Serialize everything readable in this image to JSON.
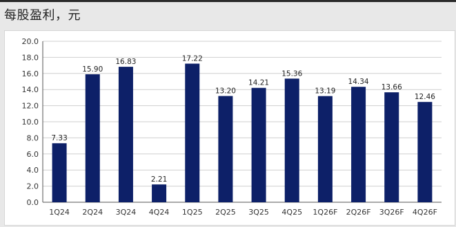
{
  "title": "每股盈利，元",
  "colors": {
    "bar": "#0d2068",
    "grid": "#cfcfcf",
    "axis": "#555555"
  },
  "chart_data": {
    "type": "bar",
    "title": "每股盈利，元",
    "xlabel": "",
    "ylabel": "",
    "categories": [
      "1Q24",
      "2Q24",
      "3Q24",
      "4Q24",
      "1Q25",
      "2Q25",
      "3Q25",
      "4Q25",
      "1Q26F",
      "2Q26F",
      "3Q26F",
      "4Q26F"
    ],
    "values": [
      7.33,
      15.9,
      16.83,
      2.21,
      17.22,
      13.2,
      14.21,
      15.36,
      13.19,
      14.34,
      13.66,
      12.46
    ],
    "data_labels": [
      "7.33",
      "15.90",
      "16.83",
      "2.21",
      "17.22",
      "13.20",
      "14.21",
      "15.36",
      "13.19",
      "14.34",
      "13.66",
      "12.46"
    ],
    "ylim": [
      0,
      20
    ],
    "y_ticks": [
      "0.0",
      "2.0",
      "4.0",
      "6.0",
      "8.0",
      "10.0",
      "12.0",
      "14.0",
      "16.0",
      "18.0",
      "20.0"
    ],
    "grid": true,
    "legend": "none"
  }
}
